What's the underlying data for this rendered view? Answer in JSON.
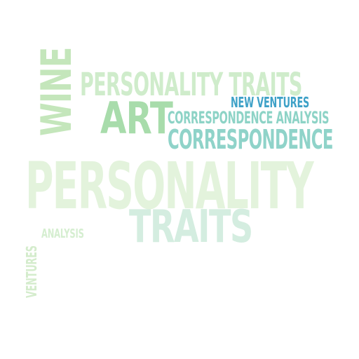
{
  "word_cloud": {
    "words": [
      {
        "id": "personality-big",
        "text": "PERSONALITY",
        "color": "#e3f3dc"
      },
      {
        "id": "traits",
        "text": "TRAITS",
        "color": "#d4ede0"
      },
      {
        "id": "personality-traits",
        "text": "PERSONALITY TRAITS",
        "color": "#cfeccb"
      },
      {
        "id": "art",
        "text": "ART",
        "color": "#a8dcab"
      },
      {
        "id": "correspondence",
        "text": "CORRESPONDENCE",
        "color": "#8fd3c9"
      },
      {
        "id": "correspondence-analysis",
        "text": "CORRESPONDENCE ANALYSIS",
        "color": "#8dd3c6"
      },
      {
        "id": "new-ventures",
        "text": "NEW VENTURES",
        "color": "#3ea1c7"
      },
      {
        "id": "analysis",
        "text": "ANALYSIS",
        "color": "#d5eed0"
      },
      {
        "id": "wine",
        "text": "WINE",
        "color": "#c4e6bb"
      },
      {
        "id": "ventures",
        "text": "VENTURES",
        "color": "#d4eccc"
      }
    ]
  }
}
